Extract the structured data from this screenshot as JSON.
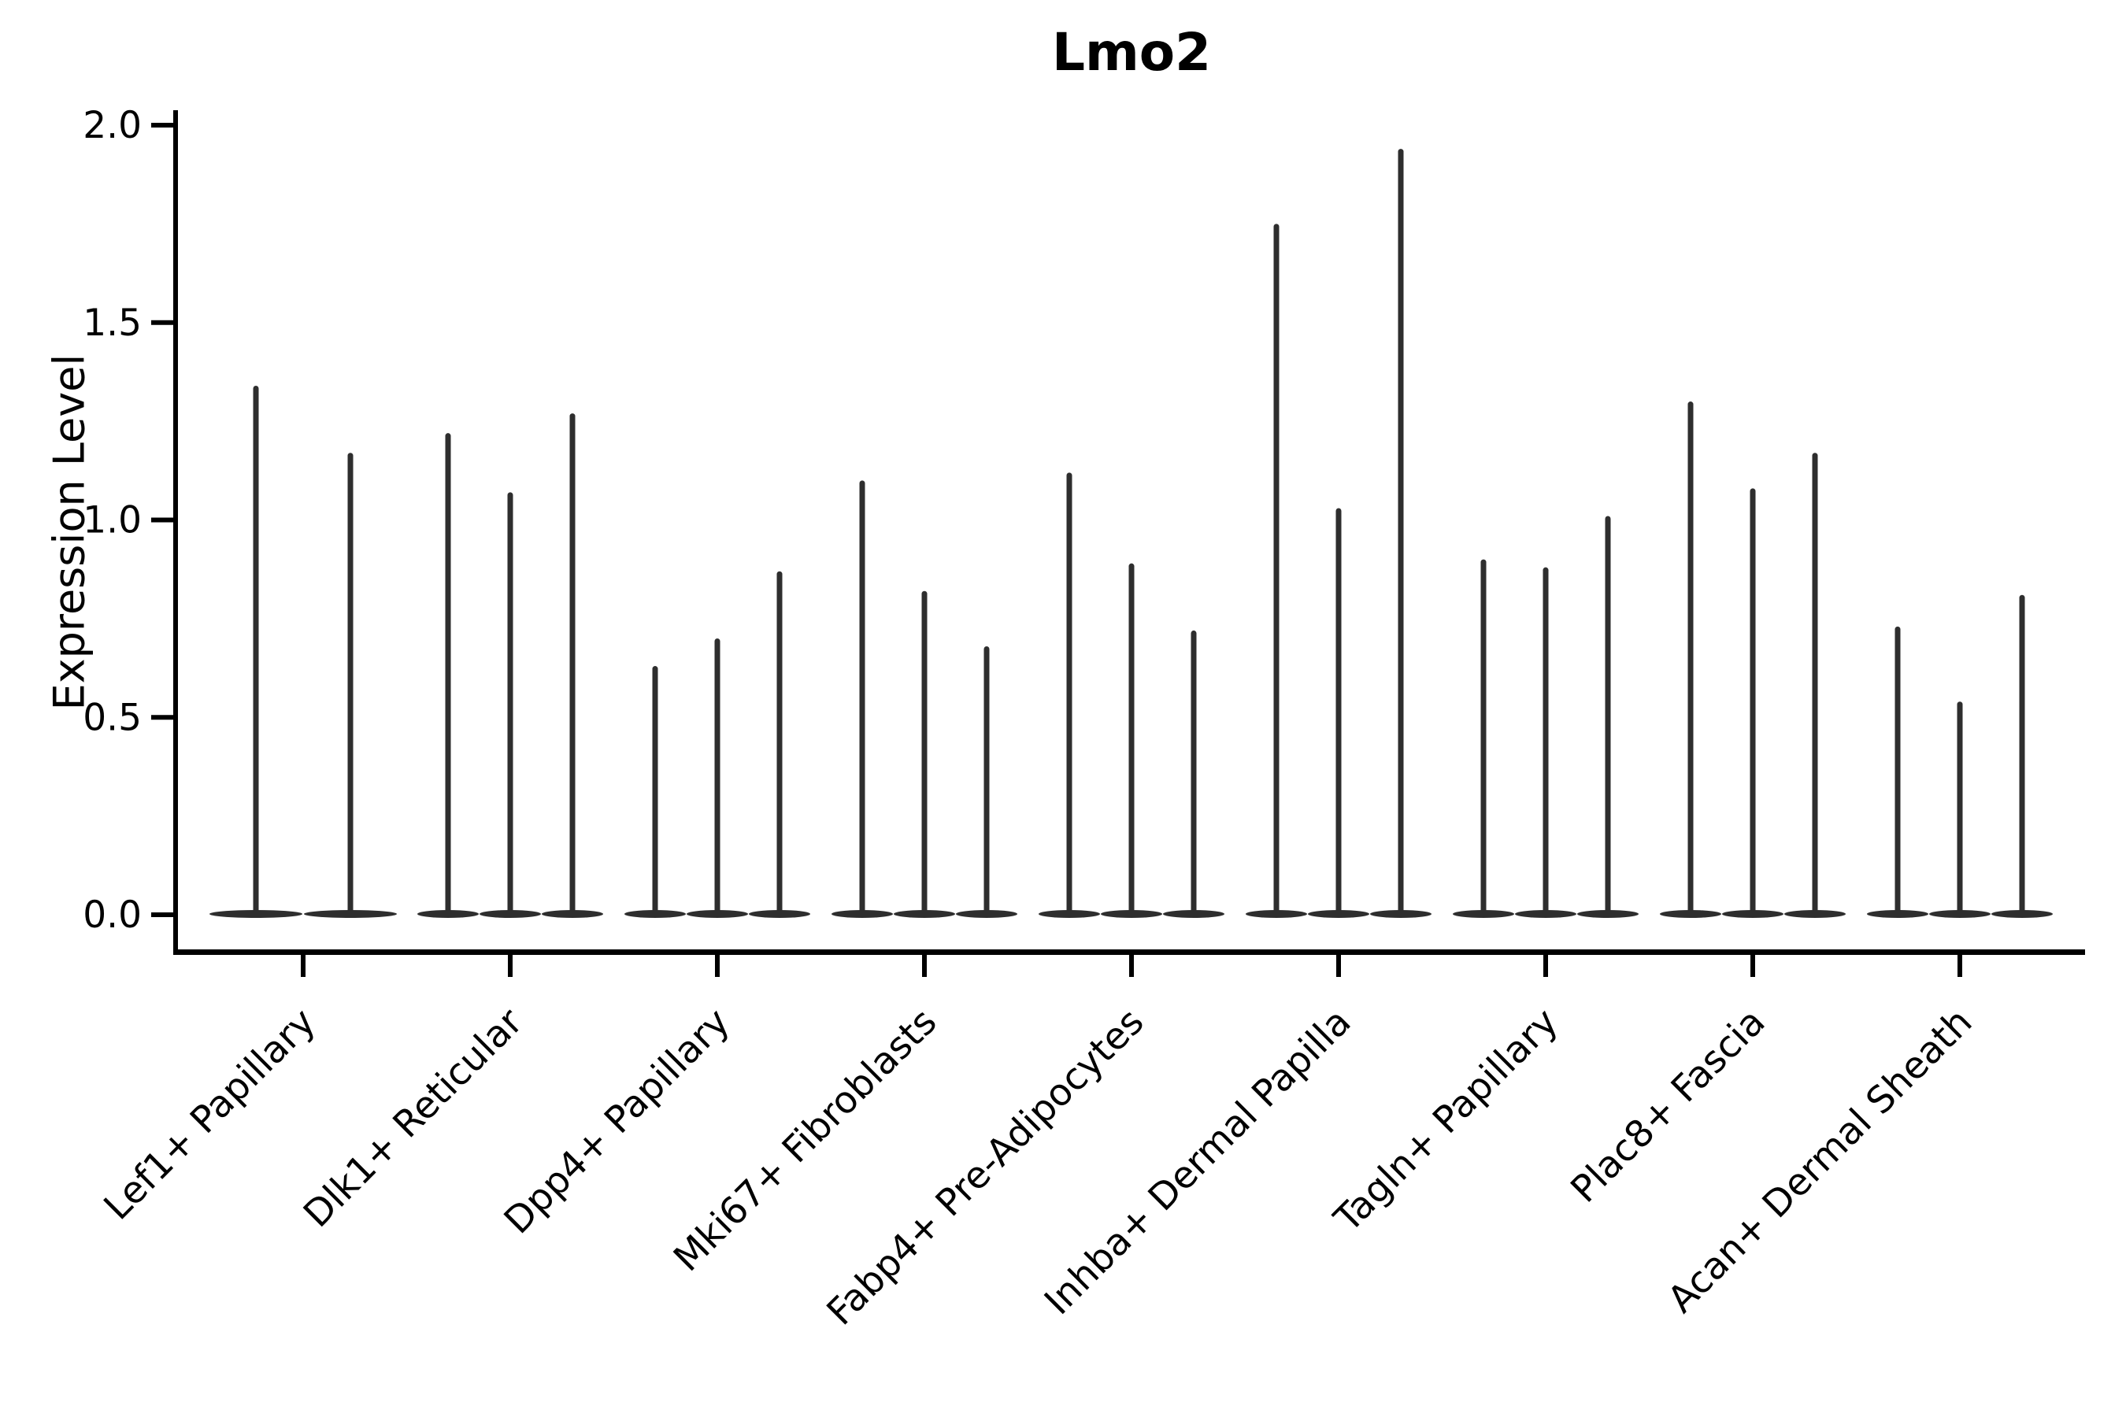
{
  "title": "Lmo2",
  "chart_data": {
    "type": "violin",
    "title": "Lmo2",
    "xlabel": "",
    "ylabel": "Expression Level",
    "ylim": [
      -0.1,
      2.03
    ],
    "ytick_values": [
      0.0,
      0.5,
      1.0,
      1.5,
      2.0
    ],
    "ytick_labels": [
      "0.0",
      "0.5",
      "1.0",
      "1.5",
      "2.0"
    ],
    "grid": false,
    "legend": null,
    "x_tick_rotation_deg": 45,
    "categories": [
      "Lef1+ Papillary",
      "Dlk1+ Reticular",
      "Dpp4+ Papillary",
      "Mki67+ Fibroblasts",
      "Fabp4+ Pre-Adipocytes",
      "Inhba+ Dermal Papilla",
      "Tagln+ Papillary",
      "Plac8+ Fascia",
      "Acan+ Dermal Sheath"
    ],
    "groups": [
      {
        "category": "Lef1+ Papillary",
        "violin_baseline": 0.0,
        "violin_max_values": [
          1.34,
          1.17
        ]
      },
      {
        "category": "Dlk1+ Reticular",
        "violin_baseline": 0.0,
        "violin_max_values": [
          1.22,
          1.07,
          1.27
        ]
      },
      {
        "category": "Dpp4+ Papillary",
        "violin_baseline": 0.0,
        "violin_max_values": [
          0.63,
          0.7,
          0.87
        ]
      },
      {
        "category": "Mki67+ Fibroblasts",
        "violin_baseline": 0.0,
        "violin_max_values": [
          1.1,
          0.82,
          0.68
        ]
      },
      {
        "category": "Fabp4+ Pre-Adipocytes",
        "violin_baseline": 0.0,
        "violin_max_values": [
          1.12,
          0.89,
          0.72
        ]
      },
      {
        "category": "Inhba+ Dermal Papilla",
        "violin_baseline": 0.0,
        "violin_max_values": [
          1.75,
          1.03,
          1.94
        ]
      },
      {
        "category": "Tagln+ Papillary",
        "violin_baseline": 0.0,
        "violin_max_values": [
          0.9,
          0.88,
          1.01
        ]
      },
      {
        "category": "Plac8+ Fascia",
        "violin_baseline": 0.0,
        "violin_max_values": [
          1.3,
          1.08,
          1.17
        ]
      },
      {
        "category": "Acan+ Dermal Sheath",
        "violin_baseline": 0.0,
        "violin_max_values": [
          0.73,
          0.54,
          0.81
        ]
      }
    ],
    "colors": {
      "violin": "#2e2e2e",
      "axis": "#000000",
      "text": "#000000",
      "background": "#ffffff"
    }
  }
}
